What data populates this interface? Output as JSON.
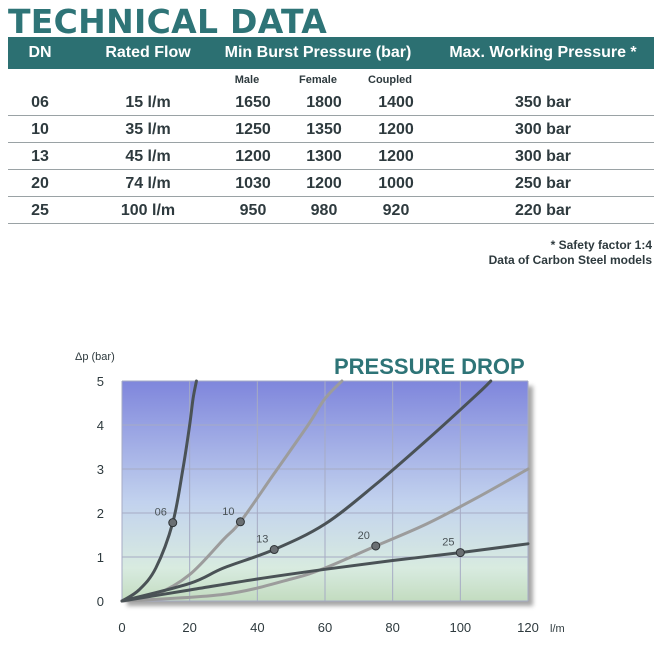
{
  "page_title": "TECHNICAL DATA",
  "table": {
    "headers": {
      "dn": "DN",
      "rated_flow": "Rated Flow",
      "min_burst": "Min Burst Pressure (bar)",
      "max_working": "Max. Working Pressure  *"
    },
    "subheaders": {
      "male": "Male",
      "female": "Female",
      "coupled": "Coupled"
    },
    "rows": [
      {
        "dn": "06",
        "flow": "15 l/m",
        "male": "1650",
        "female": "1800",
        "coupled": "1400",
        "max": "350 bar"
      },
      {
        "dn": "10",
        "flow": "35 l/m",
        "male": "1250",
        "female": "1350",
        "coupled": "1200",
        "max": "300 bar"
      },
      {
        "dn": "13",
        "flow": "45 l/m",
        "male": "1200",
        "female": "1300",
        "coupled": "1200",
        "max": "300 bar"
      },
      {
        "dn": "20",
        "flow": "74 l/m",
        "male": "1030",
        "female": "1200",
        "coupled": "1000",
        "max": "250 bar"
      },
      {
        "dn": "25",
        "flow": "100 l/m",
        "male": "950",
        "female": "980",
        "coupled": "920",
        "max": "220 bar"
      }
    ]
  },
  "notes": {
    "safety": "* Safety factor 1:4",
    "models": "Data of Carbon Steel models"
  },
  "chart_data": {
    "type": "line",
    "title": "PRESSURE DROP",
    "ylabel": "Δp (bar)",
    "xlabel": "l/m",
    "xlim": [
      0,
      120
    ],
    "ylim": [
      0,
      5
    ],
    "xticks": [
      "0",
      "20",
      "40",
      "60",
      "80",
      "100",
      "120"
    ],
    "yticks": [
      "0",
      "1",
      "2",
      "3",
      "4",
      "5"
    ],
    "grid": true,
    "series": [
      {
        "name": "06",
        "color": "#4a5256",
        "x": [
          0,
          5,
          10,
          15,
          18,
          20,
          21,
          22
        ],
        "y": [
          0,
          0.25,
          0.75,
          1.78,
          3.0,
          4.0,
          4.6,
          5.0
        ],
        "marker": {
          "x": 15,
          "y": 1.78
        }
      },
      {
        "name": "10",
        "color": "#9c9c9c",
        "x": [
          0,
          10,
          20,
          30,
          35,
          45,
          55,
          60,
          65
        ],
        "y": [
          0,
          0.15,
          0.6,
          1.4,
          1.8,
          2.9,
          4.0,
          4.6,
          5.0
        ],
        "marker": {
          "x": 35,
          "y": 1.8
        }
      },
      {
        "name": "13",
        "color": "#4a5256",
        "x": [
          0,
          20,
          30,
          45,
          60,
          75,
          90,
          105,
          109
        ],
        "y": [
          0,
          0.4,
          0.75,
          1.17,
          1.75,
          2.65,
          3.65,
          4.7,
          5.0
        ],
        "marker": {
          "x": 45,
          "y": 1.17
        }
      },
      {
        "name": "20",
        "color": "#9c9c9c",
        "x": [
          0,
          30,
          50,
          60,
          75,
          90,
          105,
          120
        ],
        "y": [
          0,
          0.15,
          0.5,
          0.75,
          1.25,
          1.75,
          2.35,
          3.0
        ],
        "marker": {
          "x": 75,
          "y": 1.25
        }
      },
      {
        "name": "25",
        "color": "#4a5256",
        "x": [
          0,
          20,
          40,
          60,
          80,
          100,
          120
        ],
        "y": [
          0,
          0.25,
          0.5,
          0.72,
          0.92,
          1.1,
          1.3
        ],
        "marker": {
          "x": 100,
          "y": 1.1
        }
      }
    ]
  }
}
